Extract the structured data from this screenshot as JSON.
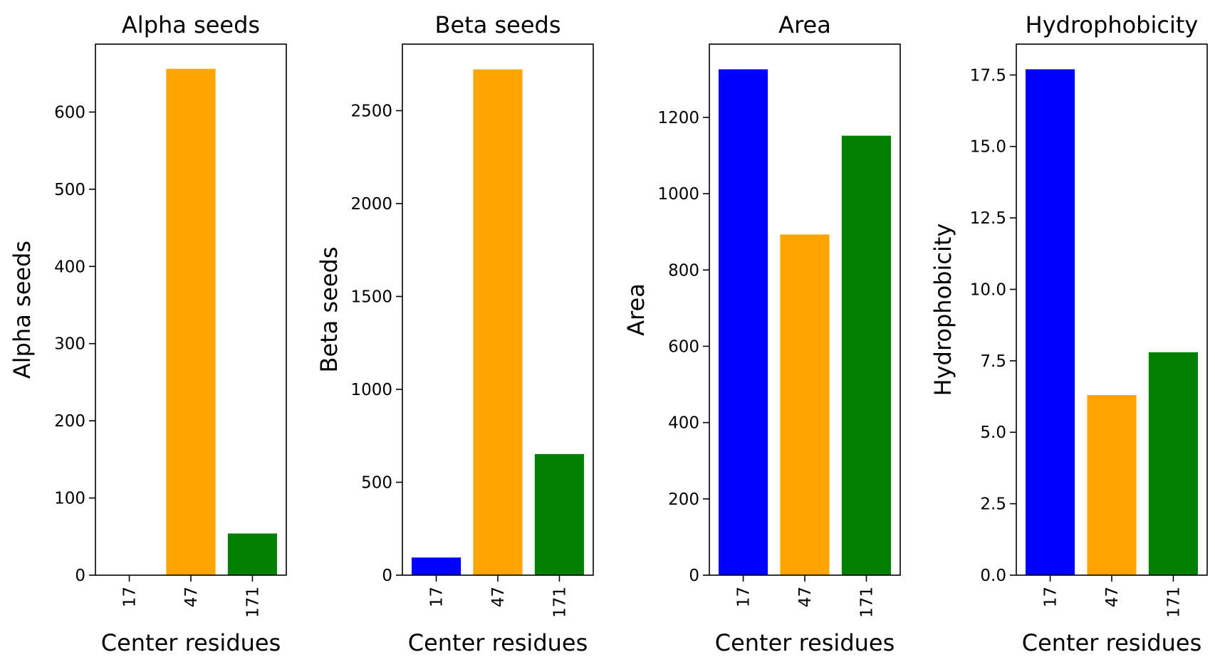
{
  "chart_data": [
    {
      "type": "bar",
      "title": "Alpha seeds",
      "xlabel": "Center residues",
      "ylabel": "Alpha seeds",
      "categories": [
        "17",
        "47",
        "171"
      ],
      "values": [
        0,
        656,
        54
      ],
      "colors": [
        "#0000ff",
        "#ffa500",
        "#008000"
      ],
      "ylim": [
        0,
        688
      ],
      "yticks": [
        0,
        100,
        200,
        300,
        400,
        500,
        600
      ],
      "ytick_labels": [
        "0",
        "100",
        "200",
        "300",
        "400",
        "500",
        "600"
      ]
    },
    {
      "type": "bar",
      "title": "Beta seeds",
      "xlabel": "Center residues",
      "ylabel": "Beta seeds",
      "categories": [
        "17",
        "47",
        "171"
      ],
      "values": [
        95,
        2722,
        652
      ],
      "colors": [
        "#0000ff",
        "#ffa500",
        "#008000"
      ],
      "ylim": [
        0,
        2858
      ],
      "yticks": [
        0,
        500,
        1000,
        1500,
        2000,
        2500
      ],
      "ytick_labels": [
        "0",
        "500",
        "1000",
        "1500",
        "2000",
        "2500"
      ]
    },
    {
      "type": "bar",
      "title": "Area",
      "xlabel": "Center residues",
      "ylabel": "Area",
      "categories": [
        "17",
        "47",
        "171"
      ],
      "values": [
        1326,
        893,
        1152
      ],
      "colors": [
        "#0000ff",
        "#ffa500",
        "#008000"
      ],
      "ylim": [
        0,
        1392
      ],
      "yticks": [
        0,
        200,
        400,
        600,
        800,
        1000,
        1200
      ],
      "ytick_labels": [
        "0",
        "200",
        "400",
        "600",
        "800",
        "1000",
        "1200"
      ]
    },
    {
      "type": "bar",
      "title": "Hydrophobicity",
      "xlabel": "Center residues",
      "ylabel": "Hydrophobicity",
      "categories": [
        "17",
        "47",
        "171"
      ],
      "values": [
        17.7,
        6.3,
        7.8
      ],
      "colors": [
        "#0000ff",
        "#ffa500",
        "#008000"
      ],
      "ylim": [
        0,
        18.58
      ],
      "yticks": [
        0,
        2.5,
        5,
        7.5,
        10,
        12.5,
        15,
        17.5
      ],
      "ytick_labels": [
        "0.0",
        "2.5",
        "5.0",
        "7.5",
        "10.0",
        "12.5",
        "15.0",
        "17.5"
      ]
    }
  ]
}
